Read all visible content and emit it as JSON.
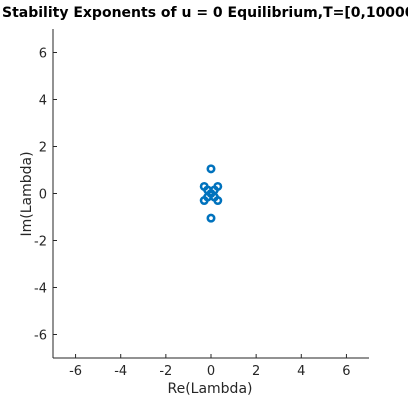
{
  "chart_data": {
    "type": "scatter",
    "title": "Stability Exponents of u = 0 Equilibrium,T=[0,10000",
    "xlabel": "Re(Lambda)",
    "ylabel": "Im(Lambda)",
    "xlim": [
      -7,
      7
    ],
    "ylim": [
      -7,
      7
    ],
    "x_ticks": [
      -6,
      -4,
      -2,
      0,
      2,
      4,
      6
    ],
    "y_ticks": [
      -6,
      -4,
      -2,
      0,
      2,
      4,
      6
    ],
    "grid": false,
    "marker_color": "#0072BD",
    "series": [
      {
        "points": [
          {
            "x": 0,
            "y": 1.05
          },
          {
            "x": 0,
            "y": -1.05
          },
          {
            "x": -0.3,
            "y": 0.3
          },
          {
            "x": 0.3,
            "y": 0.3
          },
          {
            "x": -0.3,
            "y": -0.3
          },
          {
            "x": 0.3,
            "y": -0.3
          },
          {
            "x": -0.15,
            "y": 0.15
          },
          {
            "x": 0.15,
            "y": 0.15
          },
          {
            "x": -0.15,
            "y": -0.15
          },
          {
            "x": 0.15,
            "y": -0.15
          },
          {
            "x": 0,
            "y": 0
          }
        ]
      }
    ]
  }
}
